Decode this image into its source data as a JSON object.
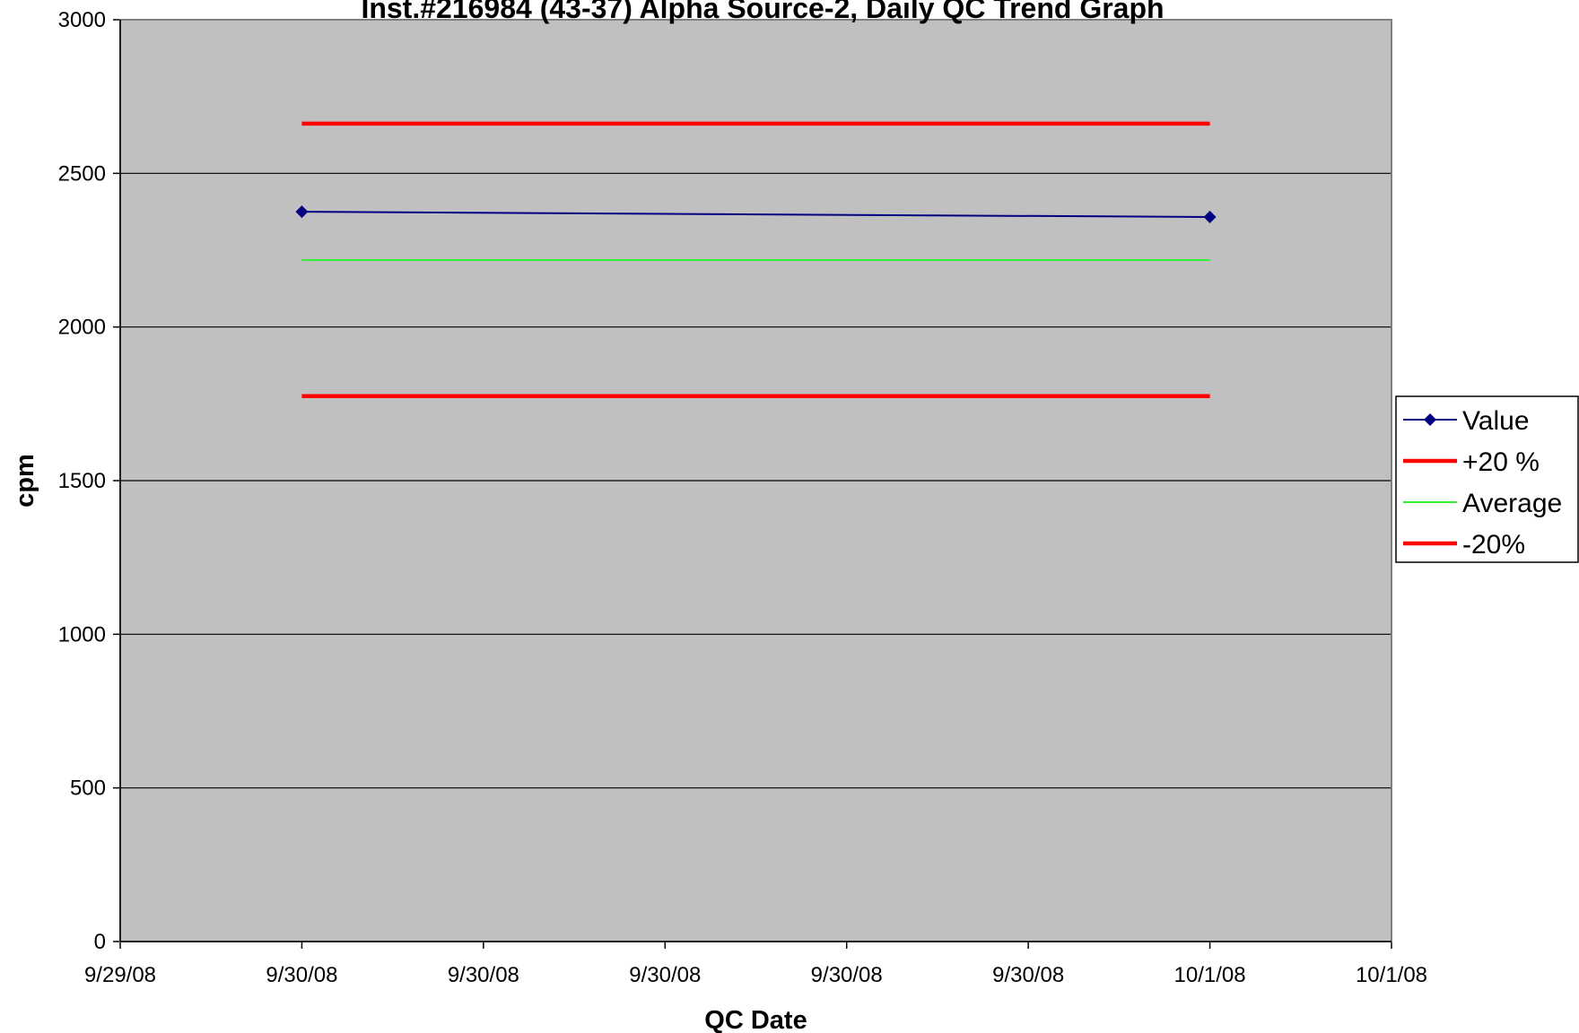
{
  "chart_data": {
    "type": "line",
    "title": "Inst.#216984 (43-37) Alpha Source-2, Daily QC Trend Graph",
    "xlabel": "QC Date",
    "ylabel": "cpm",
    "xlim": [
      "9/29/08",
      "10/1/08"
    ],
    "ylim": [
      0,
      3000
    ],
    "x_ticks": [
      "9/29/08",
      "9/30/08",
      "9/30/08",
      "9/30/08",
      "9/30/08",
      "9/30/08",
      "10/1/08",
      "10/1/08"
    ],
    "y_ticks": [
      "0",
      "500",
      "1000",
      "1500",
      "2000",
      "2500",
      "3000"
    ],
    "grid": true,
    "legend_position": "right",
    "plot_background": "#c0c0c0",
    "x_range": [
      0,
      7
    ],
    "series": [
      {
        "name": "Value",
        "color": "#000080",
        "marker": "diamond",
        "points": [
          [
            1,
            2375
          ],
          [
            6,
            2358
          ]
        ]
      },
      {
        "name": "+20 %",
        "color": "#ff0000",
        "marker": "none",
        "points": [
          [
            1,
            2662
          ],
          [
            6,
            2662
          ]
        ]
      },
      {
        "name": "Average",
        "color": "#33ee33",
        "marker": "none",
        "points": [
          [
            1,
            2218
          ],
          [
            6,
            2218
          ]
        ]
      },
      {
        "name": "-20%",
        "color": "#ff0000",
        "marker": "none",
        "points": [
          [
            1,
            1775
          ],
          [
            6,
            1775
          ]
        ]
      }
    ]
  }
}
